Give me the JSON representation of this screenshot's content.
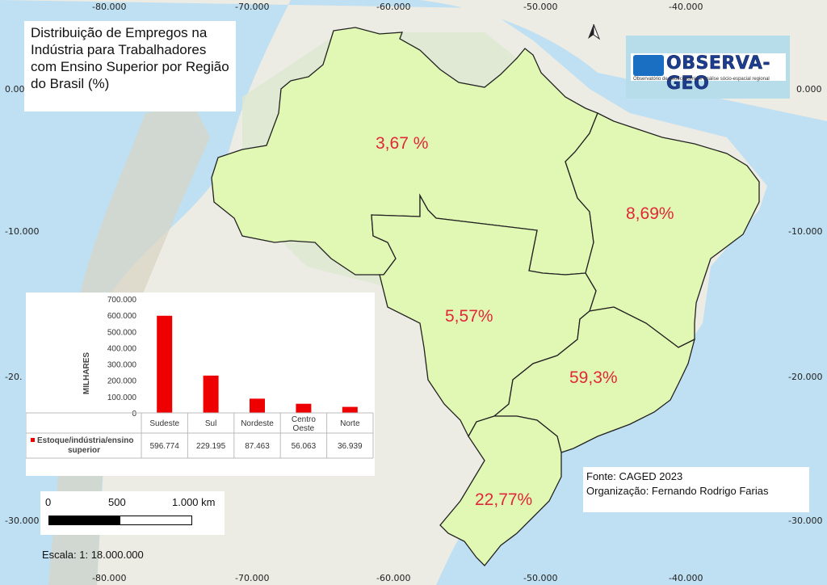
{
  "map": {
    "title": "Distribuição de Empregos na Indústria para Trabalhadores com Ensino Superior por Região do Brasil (%)",
    "regions": [
      {
        "name": "Norte",
        "value_label": "3,67 %",
        "color": "#e1f8b4"
      },
      {
        "name": "Nordeste",
        "value_label": "8,69%",
        "color": "#e1f8b4"
      },
      {
        "name": "Centro Oeste",
        "value_label": "5,57%",
        "color": "#e1f8b4"
      },
      {
        "name": "Sudeste",
        "value_label": "59,3%",
        "color": "#e1f8b4"
      },
      {
        "name": "Sul",
        "value_label": "22,77%",
        "color": "#e1f8b4"
      }
    ],
    "label_color": "#e0283a",
    "coordinates": {
      "top": [
        "-80.000",
        "-70.000",
        "-60.000",
        "-50.000",
        "-40.000"
      ],
      "bottom": [
        "-80.000",
        "-70.000",
        "-60.000",
        "-50.000",
        "-40.000"
      ],
      "left": [
        "0.000",
        "-10.000",
        "-20.",
        "-30.000"
      ],
      "right": [
        "0.000",
        "-10.000",
        "-20.000",
        "-30.000"
      ]
    },
    "logo": {
      "name": "OBSERVA-GEO",
      "tagline": "Observatório de geoeconomia e análise sócio-espacial regional"
    },
    "source": "Fonte: CAGED 2023",
    "organization": "Organização: Fernando Rodrigo Farias",
    "scale_bar": {
      "labels": [
        "0",
        "500",
        "1.000 km"
      ],
      "text": "Escala: 1: 18.000.000"
    }
  },
  "chart_data": {
    "type": "bar",
    "categories": [
      "Sudeste",
      "Sul",
      "Nordeste",
      "Centro Oeste",
      "Norte"
    ],
    "series": [
      {
        "name": "Estoque/indústria/ensino superior",
        "values": [
          596774,
          229195,
          87463,
          56063,
          36939
        ]
      }
    ],
    "value_labels": [
      "596.774",
      "229.195",
      "87.463",
      "56.063",
      "36.939"
    ],
    "ylabel": "MILHARES",
    "ylim": [
      0,
      700000
    ],
    "yticks": [
      "0",
      "100.000",
      "200.000",
      "300.000",
      "400.000",
      "500.000",
      "600.000",
      "700.000"
    ],
    "bar_color": "#ee0000",
    "grid": false,
    "legend": "data-table"
  }
}
